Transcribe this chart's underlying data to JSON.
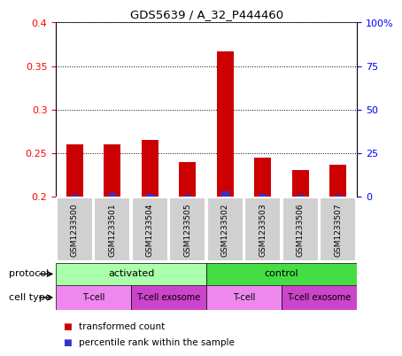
{
  "title": "GDS5639 / A_32_P444460",
  "samples": [
    "GSM1233500",
    "GSM1233501",
    "GSM1233504",
    "GSM1233505",
    "GSM1233502",
    "GSM1233503",
    "GSM1233506",
    "GSM1233507"
  ],
  "transformed_count": [
    0.26,
    0.26,
    0.265,
    0.24,
    0.367,
    0.245,
    0.23,
    0.237
  ],
  "percentile_rank": [
    1.0,
    2.0,
    1.5,
    1.0,
    3.0,
    1.5,
    1.0,
    1.0
  ],
  "ylim_left": [
    0.2,
    0.4
  ],
  "ylim_right": [
    0,
    100
  ],
  "yticks_left": [
    0.2,
    0.25,
    0.3,
    0.35,
    0.4
  ],
  "yticks_right": [
    0,
    25,
    50,
    75,
    100
  ],
  "ytick_labels_right": [
    "0",
    "25",
    "50",
    "75",
    "100%"
  ],
  "ytick_labels_left": [
    "0.2",
    "0.25",
    "0.3",
    "0.35",
    "0.4"
  ],
  "bar_color_red": "#cc0000",
  "bar_color_blue": "#3333cc",
  "bar_width": 0.45,
  "blue_bar_width": 0.2,
  "protocol_groups": [
    {
      "label": "activated",
      "start": 0,
      "end": 4,
      "color": "#aaeea a"
    },
    {
      "label": "control",
      "start": 4,
      "end": 8,
      "color": "#44cc44"
    }
  ],
  "protocol_colors": [
    "#aaffaa",
    "#44dd44"
  ],
  "cell_type_groups": [
    {
      "label": "T-cell",
      "start": 0,
      "end": 2,
      "color": "#ee88ee"
    },
    {
      "label": "T-cell exosome",
      "start": 2,
      "end": 4,
      "color": "#cc44cc"
    },
    {
      "label": "T-cell",
      "start": 4,
      "end": 6,
      "color": "#ee88ee"
    },
    {
      "label": "T-cell exosome",
      "start": 6,
      "end": 8,
      "color": "#cc44cc"
    }
  ],
  "legend_red_label": "transformed count",
  "legend_blue_label": "percentile rank within the sample",
  "background_color": "#ffffff",
  "label_protocol": "protocol",
  "label_celltype": "cell type",
  "base_value": 0.2,
  "col_bg_color": "#d0d0d0",
  "col_border_color": "#ffffff"
}
